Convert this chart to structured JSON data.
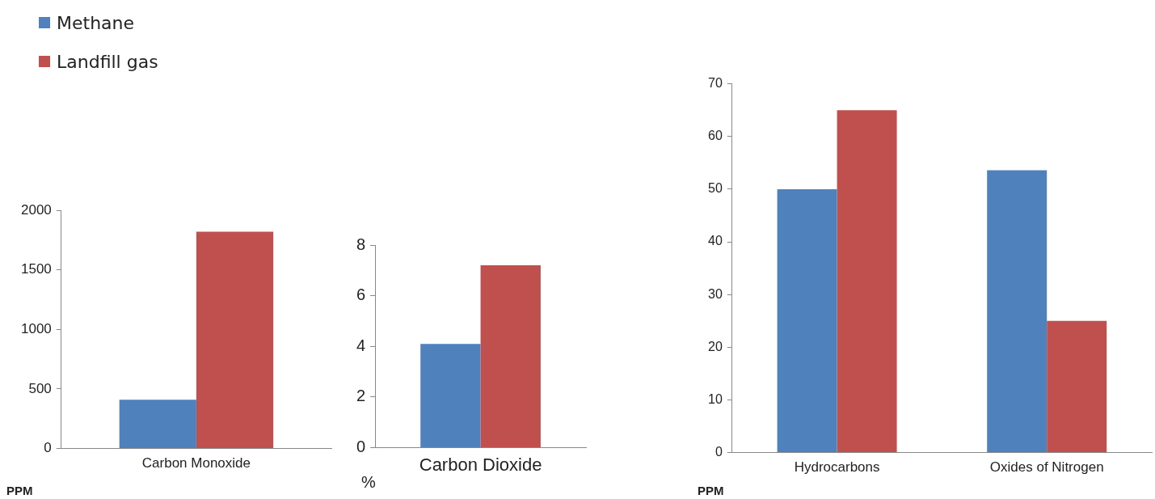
{
  "chart_data": [
    {
      "type": "bar",
      "ylabel": "PPM",
      "categories": [
        "Carbon Monoxide"
      ],
      "legend": "top left",
      "series": [
        {
          "name": "Methane",
          "color": "#4f81bd",
          "values": [
            410
          ]
        },
        {
          "name": "Landfill gas",
          "color": "#c0504d",
          "values": [
            1820
          ]
        }
      ],
      "ylim": [
        0,
        2000
      ],
      "yticks": [
        0,
        500,
        1000,
        1500,
        2000
      ],
      "grid": false
    },
    {
      "type": "bar",
      "ylabel": "%",
      "categories": [
        "Carbon Dioxide"
      ],
      "series": [
        {
          "color": "#4f81bd",
          "values": [
            4.1
          ]
        },
        {
          "color": "#c0504d",
          "values": [
            7.2
          ]
        }
      ],
      "ylim": [
        0,
        8
      ],
      "yticks": [
        0,
        2,
        4,
        6,
        8
      ],
      "grid": false
    },
    {
      "type": "bar",
      "ylabel": "PPM",
      "categories": [
        "Hydrocarbons",
        "Oxides of Nitrogen"
      ],
      "series": [
        {
          "color": "#4f81bd",
          "values": [
            50,
            53.6
          ]
        },
        {
          "color": "#c0504d",
          "values": [
            65,
            25
          ]
        }
      ],
      "ylim": [
        0,
        70
      ],
      "yticks": [
        0,
        10,
        20,
        30,
        40,
        50,
        60,
        70
      ],
      "grid": false
    }
  ]
}
